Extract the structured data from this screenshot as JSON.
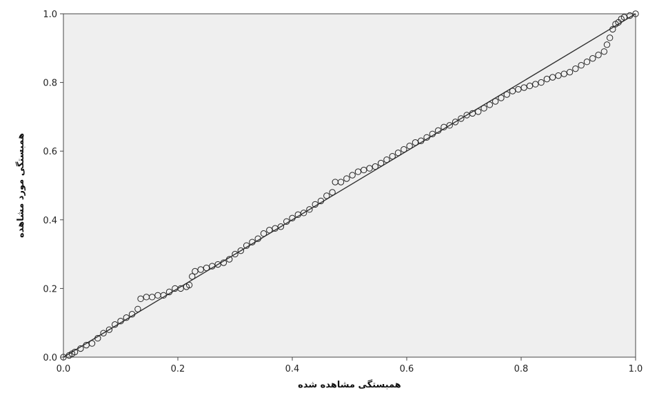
{
  "chart_data": {
    "type": "scatter",
    "title": "",
    "xlabel": "همبستگی مشاهده شده",
    "ylabel": "همبستگی مورد مشاهده",
    "xlim": [
      0,
      1
    ],
    "ylim": [
      0,
      1
    ],
    "x_ticks": [
      "0.0",
      "0.2",
      "0.4",
      "0.6",
      "0.8",
      "1.0"
    ],
    "y_ticks": [
      "0.0",
      "0.2",
      "0.4",
      "0.6",
      "0.8",
      "1.0"
    ],
    "grid": false,
    "plot_background": "#efefef",
    "marker": "open-circle",
    "reference_line": {
      "from": [
        0,
        0
      ],
      "to": [
        1,
        1
      ]
    },
    "series": [
      {
        "points": [
          [
            0.0,
            0.0
          ],
          [
            0.01,
            0.005
          ],
          [
            0.015,
            0.01
          ],
          [
            0.02,
            0.015
          ],
          [
            0.03,
            0.025
          ],
          [
            0.04,
            0.035
          ],
          [
            0.05,
            0.04
          ],
          [
            0.06,
            0.055
          ],
          [
            0.07,
            0.07
          ],
          [
            0.08,
            0.08
          ],
          [
            0.09,
            0.095
          ],
          [
            0.1,
            0.105
          ],
          [
            0.11,
            0.115
          ],
          [
            0.12,
            0.125
          ],
          [
            0.13,
            0.14
          ],
          [
            0.135,
            0.17
          ],
          [
            0.145,
            0.175
          ],
          [
            0.155,
            0.175
          ],
          [
            0.165,
            0.18
          ],
          [
            0.175,
            0.18
          ],
          [
            0.185,
            0.19
          ],
          [
            0.195,
            0.2
          ],
          [
            0.205,
            0.2
          ],
          [
            0.215,
            0.205
          ],
          [
            0.22,
            0.21
          ],
          [
            0.225,
            0.235
          ],
          [
            0.23,
            0.25
          ],
          [
            0.24,
            0.255
          ],
          [
            0.25,
            0.26
          ],
          [
            0.26,
            0.265
          ],
          [
            0.27,
            0.27
          ],
          [
            0.28,
            0.275
          ],
          [
            0.29,
            0.285
          ],
          [
            0.3,
            0.3
          ],
          [
            0.31,
            0.31
          ],
          [
            0.32,
            0.325
          ],
          [
            0.33,
            0.335
          ],
          [
            0.34,
            0.345
          ],
          [
            0.35,
            0.36
          ],
          [
            0.36,
            0.37
          ],
          [
            0.37,
            0.375
          ],
          [
            0.38,
            0.38
          ],
          [
            0.39,
            0.395
          ],
          [
            0.4,
            0.405
          ],
          [
            0.41,
            0.415
          ],
          [
            0.42,
            0.42
          ],
          [
            0.43,
            0.43
          ],
          [
            0.44,
            0.445
          ],
          [
            0.45,
            0.455
          ],
          [
            0.46,
            0.47
          ],
          [
            0.47,
            0.48
          ],
          [
            0.475,
            0.51
          ],
          [
            0.485,
            0.51
          ],
          [
            0.495,
            0.52
          ],
          [
            0.505,
            0.53
          ],
          [
            0.515,
            0.54
          ],
          [
            0.525,
            0.545
          ],
          [
            0.535,
            0.55
          ],
          [
            0.545,
            0.555
          ],
          [
            0.555,
            0.565
          ],
          [
            0.565,
            0.575
          ],
          [
            0.575,
            0.585
          ],
          [
            0.585,
            0.595
          ],
          [
            0.595,
            0.605
          ],
          [
            0.605,
            0.615
          ],
          [
            0.615,
            0.625
          ],
          [
            0.625,
            0.63
          ],
          [
            0.635,
            0.64
          ],
          [
            0.645,
            0.65
          ],
          [
            0.655,
            0.66
          ],
          [
            0.665,
            0.67
          ],
          [
            0.675,
            0.675
          ],
          [
            0.685,
            0.685
          ],
          [
            0.695,
            0.695
          ],
          [
            0.705,
            0.705
          ],
          [
            0.715,
            0.71
          ],
          [
            0.725,
            0.715
          ],
          [
            0.735,
            0.725
          ],
          [
            0.745,
            0.735
          ],
          [
            0.755,
            0.745
          ],
          [
            0.765,
            0.755
          ],
          [
            0.775,
            0.765
          ],
          [
            0.785,
            0.775
          ],
          [
            0.795,
            0.78
          ],
          [
            0.805,
            0.785
          ],
          [
            0.815,
            0.79
          ],
          [
            0.825,
            0.795
          ],
          [
            0.835,
            0.8
          ],
          [
            0.845,
            0.81
          ],
          [
            0.855,
            0.815
          ],
          [
            0.865,
            0.82
          ],
          [
            0.875,
            0.825
          ],
          [
            0.885,
            0.83
          ],
          [
            0.895,
            0.84
          ],
          [
            0.905,
            0.85
          ],
          [
            0.915,
            0.86
          ],
          [
            0.925,
            0.87
          ],
          [
            0.935,
            0.88
          ],
          [
            0.945,
            0.89
          ],
          [
            0.95,
            0.91
          ],
          [
            0.955,
            0.93
          ],
          [
            0.96,
            0.955
          ],
          [
            0.965,
            0.97
          ],
          [
            0.97,
            0.975
          ],
          [
            0.975,
            0.985
          ],
          [
            0.98,
            0.99
          ],
          [
            0.99,
            0.995
          ],
          [
            1.0,
            1.0
          ]
        ]
      }
    ]
  }
}
